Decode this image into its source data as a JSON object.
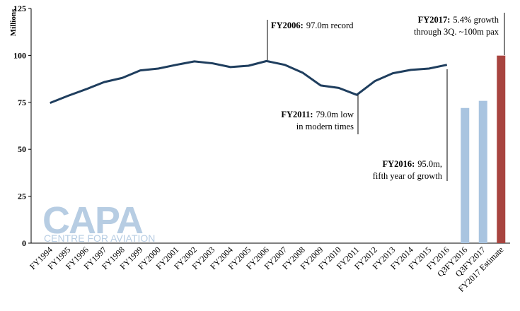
{
  "chart_data": {
    "type": "line-bar",
    "y_label": "Millions",
    "categories": [
      "FY1994",
      "FY1995",
      "FY1996",
      "FY1997",
      "FY1998",
      "FY1999",
      "FY2000",
      "FY2001",
      "FY2002",
      "FY2003",
      "FY2004",
      "FY2005",
      "FY2006",
      "FY2007",
      "FY2008",
      "FY2009",
      "FY2010",
      "FY2011",
      "FY2012",
      "FY2013",
      "FY2014",
      "FY2015",
      "FY2016",
      "Q3FY2016",
      "Q3FY2017",
      "FY2017 Estimate"
    ],
    "series": [
      {
        "type": "line",
        "color": "#1f3e5e",
        "values": [
          74.7,
          78.5,
          82,
          85.8,
          88,
          92,
          93,
          95,
          96.8,
          95.8,
          93.8,
          94.5,
          97.0,
          95,
          90.8,
          84,
          82.7,
          79.0,
          86.3,
          90.5,
          92.3,
          93,
          95.0,
          null,
          null,
          null
        ]
      },
      {
        "type": "bar",
        "values": [
          null,
          null,
          null,
          null,
          null,
          null,
          null,
          null,
          null,
          null,
          null,
          null,
          null,
          null,
          null,
          null,
          null,
          null,
          null,
          null,
          null,
          null,
          null,
          72,
          75.8,
          99.9
        ],
        "colors": [
          null,
          null,
          null,
          null,
          null,
          null,
          null,
          null,
          null,
          null,
          null,
          null,
          null,
          null,
          null,
          null,
          null,
          null,
          null,
          null,
          null,
          null,
          null,
          "#a9c4e0",
          "#a9c4e0",
          "#a8443f"
        ]
      }
    ],
    "ylim": [
      0,
      125
    ],
    "yticks": [
      0,
      25,
      50,
      75,
      100,
      125
    ],
    "annotations": [
      {
        "bold": "FY2006:",
        "lines": [
          "97.0m record"
        ]
      },
      {
        "bold": "FY2011:",
        "lines": [
          "79.0m low",
          "in modern times"
        ]
      },
      {
        "bold": "FY2016:",
        "lines": [
          "95.0m,",
          "fifth year of growth"
        ]
      },
      {
        "bold": "FY2017:",
        "lines": [
          "5.4% growth",
          "through 3Q. ~100m pax"
        ]
      }
    ],
    "logo": {
      "text": "CAPA",
      "subtitle": "CENTRE FOR AVIATION"
    }
  }
}
